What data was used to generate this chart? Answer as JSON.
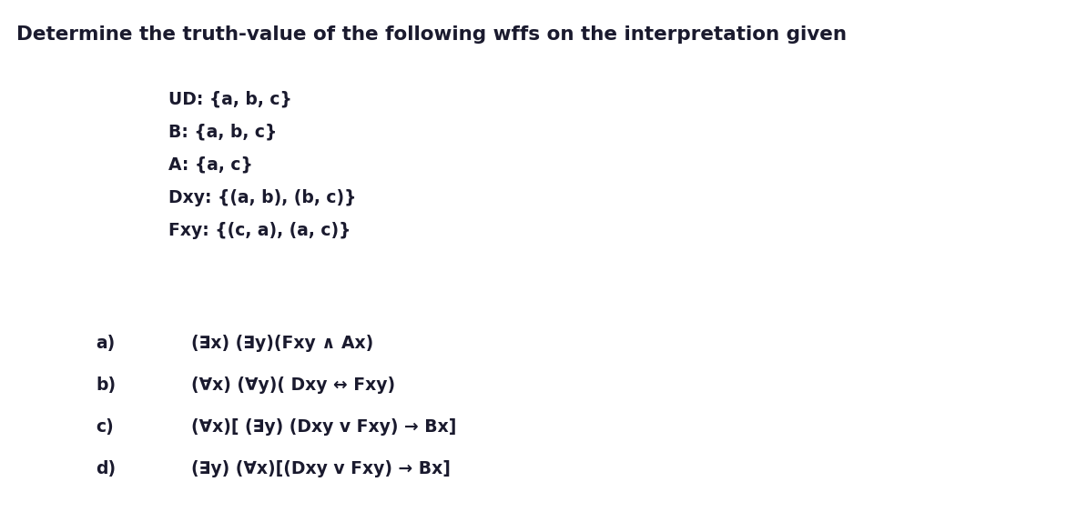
{
  "title": "Determine the truth-value of the following wffs on the interpretation given",
  "bg_color": "#ffffff",
  "text_color": "#1a1a2e",
  "font_family": "DejaVu Sans",
  "title_fontsize": 15.5,
  "title_fontweight": "bold",
  "interp_fontsize": 13.5,
  "interp_fontweight": "bold",
  "wff_fontsize": 13.5,
  "wff_fontweight": "bold",
  "interpretation_lines": [
    "UD: {a, b, c}",
    "B: {a, b, c}",
    "A: {a, c}",
    "Dxy: {(a, b), (b, c)}",
    "Fxy: {(c, a), (a, c)}"
  ],
  "wff_labels": [
    "a)",
    "b)",
    "c)",
    "d)"
  ],
  "wff_formulas": [
    "(∃x) (∃y)(Fxy ∧ Ax)",
    "(∀x) (∀y)( Dxy ↔ Fxy)",
    "(∀x)[ (∃y) (Dxy v Fxy) → Bx]",
    "(∃y) (∀x)[(Dxy v Fxy) → Bx]"
  ]
}
